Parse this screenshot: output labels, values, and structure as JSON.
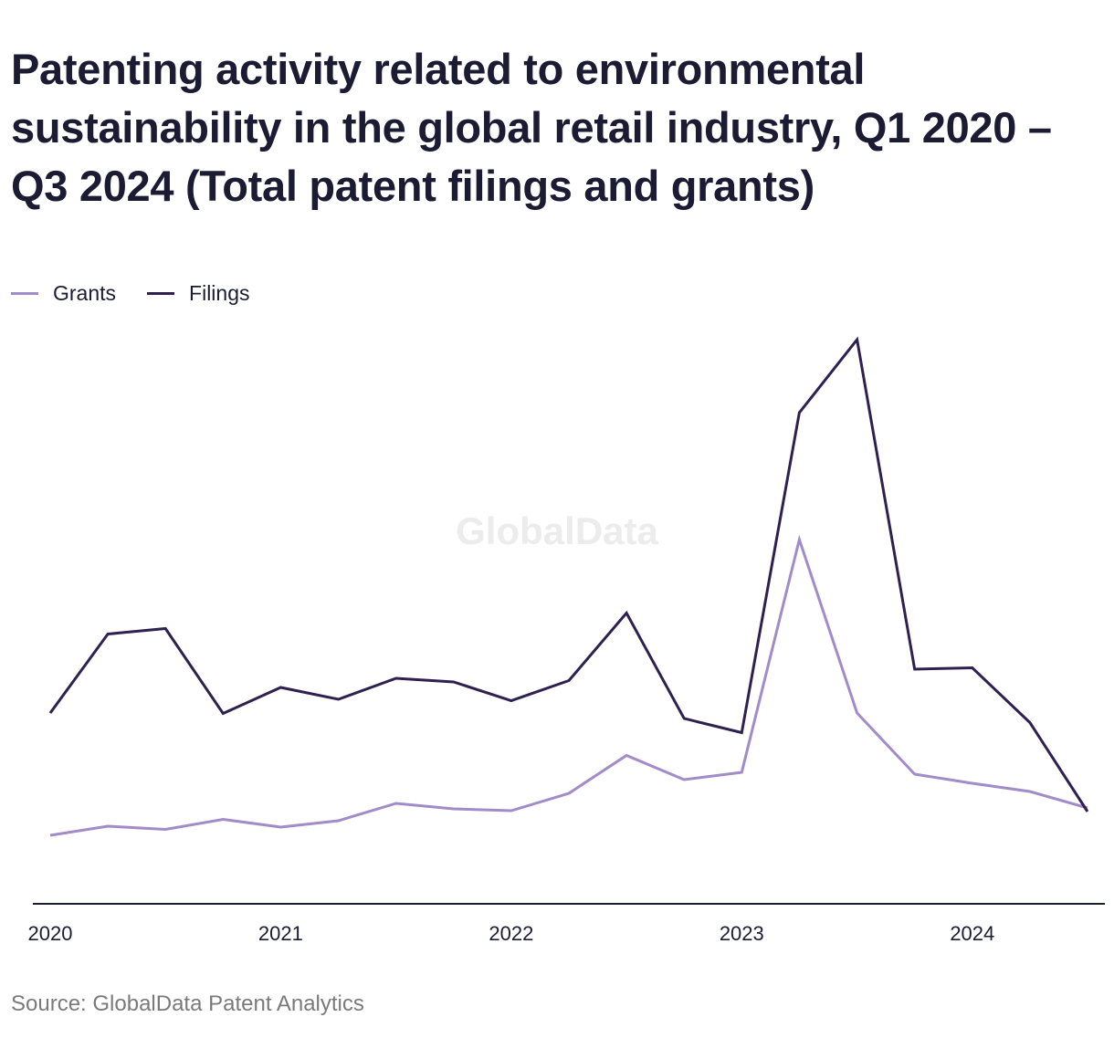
{
  "title": "Patenting activity related to environmental sustainability in the global retail industry, Q1 2020 – Q3 2024 (Total patent filings and grants)",
  "legend": {
    "grants_label": "Grants",
    "filings_label": "Filings"
  },
  "colors": {
    "grants": "#a28bc9",
    "filings": "#2e2150",
    "axis": "#1b1b33",
    "watermark": "#ececec"
  },
  "watermark": "GlobalData",
  "source": "Source: GlobalData Patent Analytics",
  "chart_data": {
    "type": "line",
    "x": [
      "Q1 2020",
      "Q2 2020",
      "Q3 2020",
      "Q4 2020",
      "Q1 2021",
      "Q2 2021",
      "Q3 2021",
      "Q4 2021",
      "Q1 2022",
      "Q2 2022",
      "Q3 2022",
      "Q4 2022",
      "Q1 2023",
      "Q2 2023",
      "Q3 2023",
      "Q4 2023",
      "Q1 2024",
      "Q2 2024",
      "Q3 2024"
    ],
    "tick_labels": [
      {
        "label": "2020",
        "index": 0
      },
      {
        "label": "2021",
        "index": 4
      },
      {
        "label": "2022",
        "index": 8
      },
      {
        "label": "2023",
        "index": 12
      },
      {
        "label": "2024",
        "index": 16
      }
    ],
    "series": [
      {
        "name": "Grants",
        "values": [
          15,
          17,
          16.3,
          18.5,
          16.8,
          18.2,
          22,
          20.8,
          20.4,
          24.2,
          32.5,
          27.2,
          28.8,
          79.8,
          41.8,
          28.4,
          26.4,
          24.6,
          21
        ]
      },
      {
        "name": "Filings",
        "values": [
          41.8,
          59.1,
          60.3,
          41.7,
          47.4,
          44.8,
          49.4,
          48.6,
          44.5,
          48.9,
          63.7,
          40.6,
          37.5,
          107.6,
          123.6,
          51.4,
          51.7,
          39.7,
          20.2
        ]
      }
    ],
    "ylim": [
      0,
      125
    ],
    "grid": false,
    "legend_position": "top-left"
  }
}
